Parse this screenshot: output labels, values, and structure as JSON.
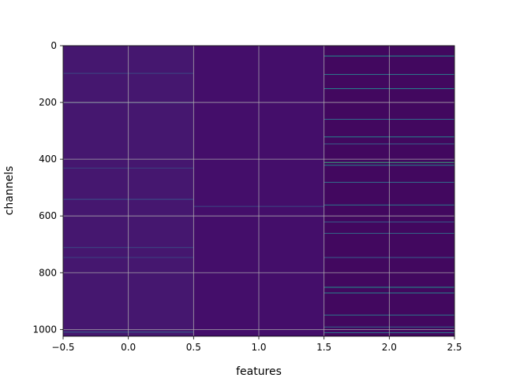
{
  "chart_data": {
    "type": "heatmap",
    "title": "",
    "xlabel": "features",
    "ylabel": "channels",
    "xlim": [
      -0.5,
      2.5
    ],
    "ylim": [
      1024,
      0
    ],
    "y_inverted": true,
    "grid": true,
    "colormap": "viridis",
    "x_ticks": [
      -0.5,
      0.0,
      0.5,
      1.0,
      1.5,
      2.0,
      2.5
    ],
    "x_tick_labels": [
      "−0.5",
      "0.0",
      "0.5",
      "1.0",
      "1.5",
      "2.0",
      "2.5"
    ],
    "y_ticks": [
      0,
      200,
      400,
      600,
      800,
      1000
    ],
    "y_tick_labels": [
      "0",
      "200",
      "400",
      "600",
      "800",
      "1000"
    ],
    "features": [
      0,
      1,
      2
    ],
    "n_channels": 1024,
    "column_background": [
      "#45176f",
      "#440e6a",
      "#42085f"
    ],
    "highlight_rows": [
      {
        "feature": 0,
        "channel": 96,
        "level": 0.22
      },
      {
        "feature": 0,
        "channel": 200,
        "level": 0.18
      },
      {
        "feature": 0,
        "channel": 430,
        "level": 0.2
      },
      {
        "feature": 0,
        "channel": 540,
        "level": 0.25
      },
      {
        "feature": 0,
        "channel": 710,
        "level": 0.22
      },
      {
        "feature": 0,
        "channel": 745,
        "level": 0.2
      },
      {
        "feature": 0,
        "channel": 1008,
        "level": 0.3
      },
      {
        "feature": 1,
        "channel": 565,
        "level": 0.22
      },
      {
        "feature": 2,
        "channel": 35,
        "level": 0.5
      },
      {
        "feature": 2,
        "channel": 100,
        "level": 0.4
      },
      {
        "feature": 2,
        "channel": 150,
        "level": 0.45
      },
      {
        "feature": 2,
        "channel": 258,
        "level": 0.35
      },
      {
        "feature": 2,
        "channel": 320,
        "level": 0.45
      },
      {
        "feature": 2,
        "channel": 345,
        "level": 0.3
      },
      {
        "feature": 2,
        "channel": 410,
        "level": 0.6
      },
      {
        "feature": 2,
        "channel": 420,
        "level": 0.45
      },
      {
        "feature": 2,
        "channel": 480,
        "level": 0.35
      },
      {
        "feature": 2,
        "channel": 560,
        "level": 0.4
      },
      {
        "feature": 2,
        "channel": 620,
        "level": 0.3
      },
      {
        "feature": 2,
        "channel": 660,
        "level": 0.35
      },
      {
        "feature": 2,
        "channel": 745,
        "level": 0.3
      },
      {
        "feature": 2,
        "channel": 850,
        "level": 0.5
      },
      {
        "feature": 2,
        "channel": 870,
        "level": 0.45
      },
      {
        "feature": 2,
        "channel": 948,
        "level": 0.4
      },
      {
        "feature": 2,
        "channel": 990,
        "level": 0.35
      },
      {
        "feature": 2,
        "channel": 1010,
        "level": 0.4
      }
    ]
  }
}
